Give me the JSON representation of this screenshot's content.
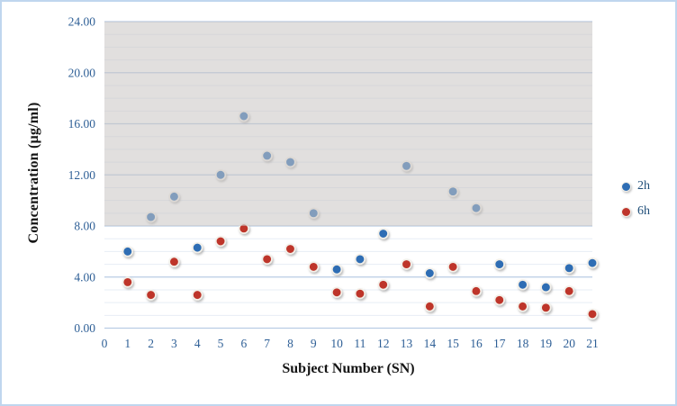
{
  "chart_data": {
    "type": "scatter",
    "title": "",
    "xlabel": "Subject Number (SN)",
    "ylabel": "Concentration (µg/ml)",
    "x": [
      1,
      2,
      3,
      4,
      5,
      6,
      7,
      8,
      9,
      10,
      11,
      12,
      13,
      14,
      15,
      16,
      17,
      18,
      19,
      20,
      21
    ],
    "series": [
      {
        "name": "2h",
        "color": "#2E6DB4",
        "values": [
          6.0,
          8.7,
          10.3,
          6.3,
          12.0,
          16.6,
          13.5,
          13.0,
          9.0,
          4.6,
          5.4,
          7.4,
          12.7,
          4.3,
          10.7,
          9.4,
          5.0,
          3.4,
          3.2,
          4.7,
          5.1
        ]
      },
      {
        "name": "6h",
        "color": "#BE352C",
        "values": [
          3.6,
          2.6,
          5.2,
          2.6,
          6.8,
          7.8,
          5.4,
          6.2,
          4.8,
          2.8,
          2.7,
          3.4,
          5.0,
          1.7,
          4.8,
          2.9,
          2.2,
          1.7,
          1.6,
          2.9,
          1.1
        ]
      }
    ],
    "xlim": [
      0,
      21
    ],
    "ylim": [
      0,
      24
    ],
    "x_ticks": [
      "0",
      "1",
      "2",
      "3",
      "4",
      "5",
      "6",
      "7",
      "8",
      "9",
      "10",
      "11",
      "12",
      "13",
      "14",
      "15",
      "16",
      "17",
      "18",
      "19",
      "20",
      "21"
    ],
    "y_ticks": [
      "0.00",
      "4.00",
      "8.00",
      "12.00",
      "16.00",
      "20.00",
      "24.00"
    ],
    "y_major_step": 4,
    "y_minor_step": 1,
    "grid": {
      "major": true,
      "minor": true
    },
    "legend_position": "right",
    "shaded_band": {
      "from": 8,
      "to": 24
    }
  },
  "colors": {
    "tick_label": "#2E5F96",
    "legend_text": "#1F4E79",
    "grid_major": "#B9CCE4",
    "grid_minor": "#E7EDF5",
    "band_fill": "rgba(200,197,194,0.55)",
    "marker_ring": "#F3F0E9",
    "canvas_border": "#BFD6EE"
  }
}
